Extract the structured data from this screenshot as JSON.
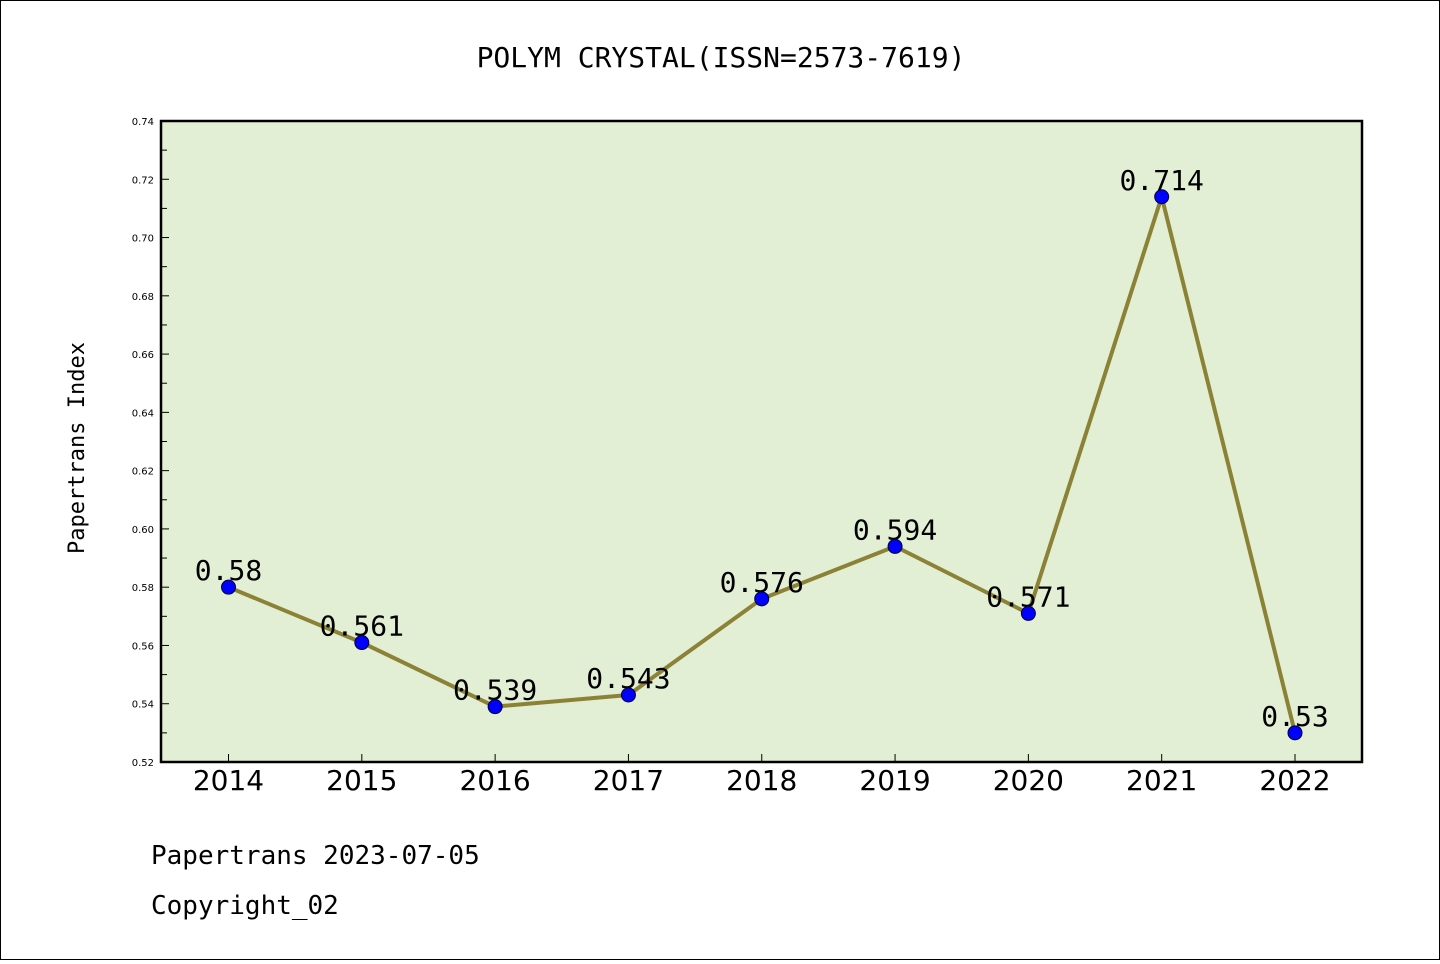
{
  "chart_data": {
    "type": "line",
    "title": "POLYM CRYSTAL(ISSN=2573-7619)",
    "xlabel": "",
    "ylabel": "Papertrans Index",
    "categories": [
      "2014",
      "2015",
      "2016",
      "2017",
      "2018",
      "2019",
      "2020",
      "2021",
      "2022"
    ],
    "series": [
      {
        "values": [
          0.58,
          0.561,
          0.539,
          0.543,
          0.576,
          0.594,
          0.571,
          0.714,
          0.53
        ]
      }
    ],
    "data_labels": [
      "0.58",
      "0.561",
      "0.539",
      "0.543",
      "0.576",
      "0.594",
      "0.571",
      "0.714",
      "0.53"
    ],
    "ylim": [
      0.52,
      0.74
    ],
    "yticks": [
      "0.52",
      "0.54",
      "0.56",
      "0.58",
      "0.60",
      "0.62",
      "0.64",
      "0.66",
      "0.68",
      "0.70",
      "0.72",
      "0.74"
    ],
    "grid": false,
    "legend": "none",
    "colors": {
      "plot_background": "#e2efd5",
      "line": "#8b8235",
      "marker": "#0000ff"
    }
  },
  "footer": {
    "line1": "Papertrans 2023-07-05",
    "line2": "Copyright_02"
  }
}
